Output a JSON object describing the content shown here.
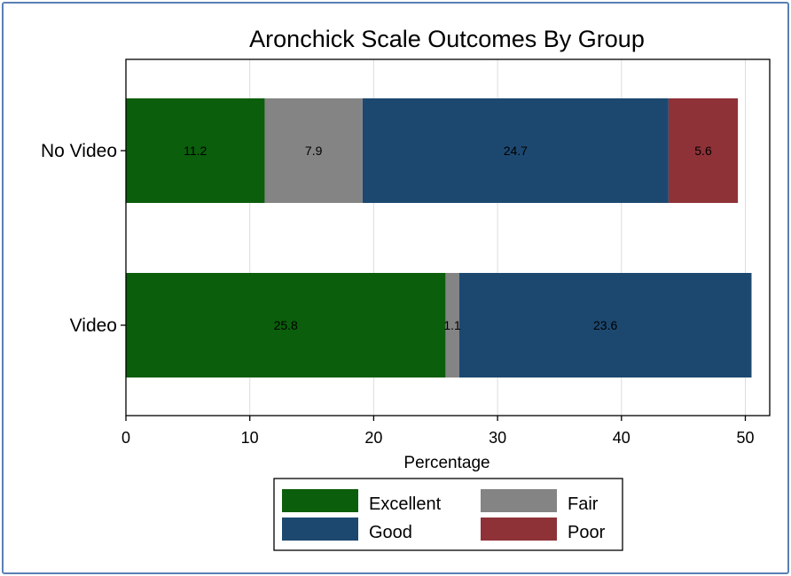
{
  "chart_data": {
    "type": "bar",
    "orientation": "horizontal",
    "stacked": true,
    "title": "Aronchick Scale Outcomes By Group",
    "xlabel": "Percentage",
    "ylabel": "",
    "xlim": [
      0,
      52
    ],
    "xticks": [
      0,
      10,
      20,
      30,
      40,
      50
    ],
    "grid": true,
    "legend_position": "bottom",
    "categories": [
      "No Video",
      "Video"
    ],
    "series": [
      {
        "name": "Excellent",
        "color": "#0b5e0b",
        "values": [
          11.2,
          25.8
        ],
        "labels": [
          "11.2",
          "25.8"
        ]
      },
      {
        "name": "Fair",
        "color": "#848484",
        "values": [
          7.9,
          1.1
        ],
        "labels": [
          "7.9",
          "1.1"
        ]
      },
      {
        "name": "Good",
        "color": "#1c4870",
        "values": [
          24.7,
          23.6
        ],
        "labels": [
          "24.7",
          "23.6"
        ]
      },
      {
        "name": "Poor",
        "color": "#8e3238",
        "values": [
          5.6,
          0
        ],
        "labels": [
          "5.6",
          ""
        ]
      }
    ],
    "legend_order": [
      "Excellent",
      "Fair",
      "Good",
      "Poor"
    ]
  }
}
